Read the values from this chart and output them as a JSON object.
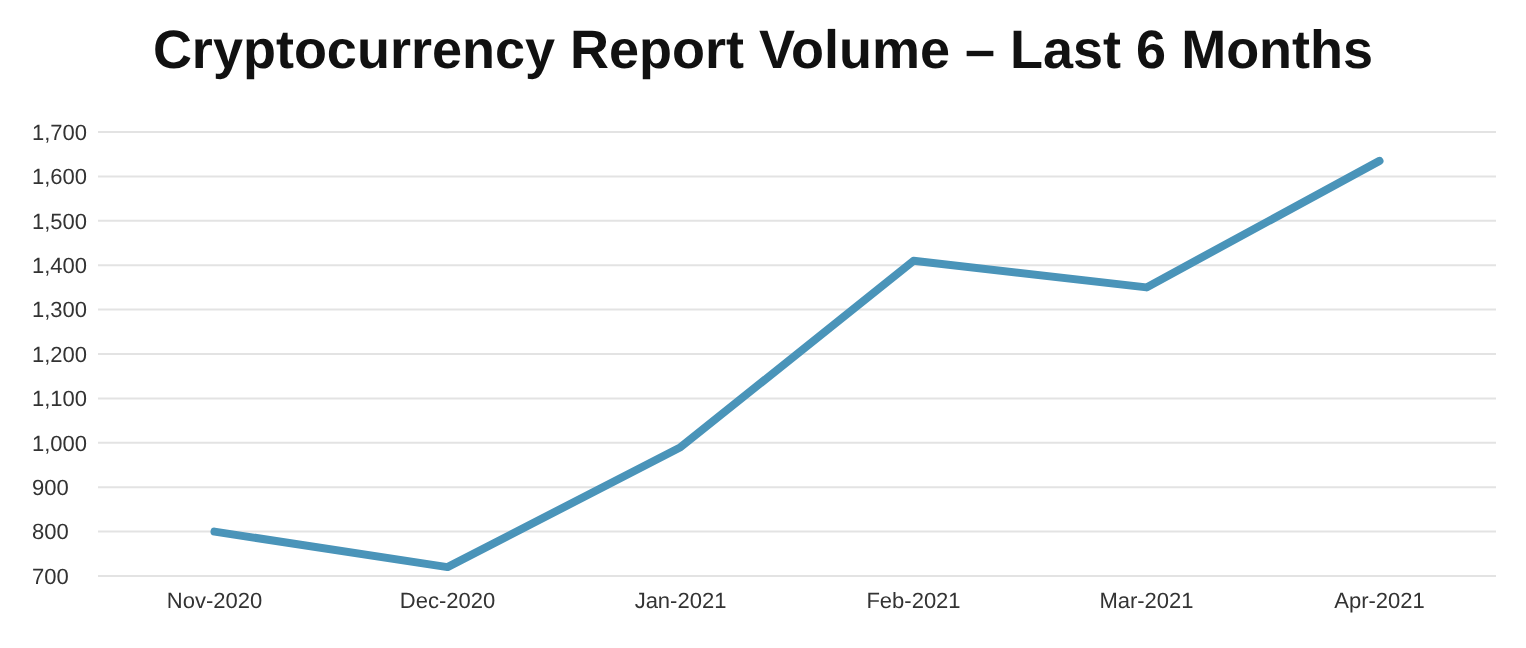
{
  "chart_data": {
    "type": "line",
    "title": "Cryptocurrency Report Volume – Last 6 Months",
    "categories": [
      "Nov-2020",
      "Dec-2020",
      "Jan-2021",
      "Feb-2021",
      "Mar-2021",
      "Apr-2021"
    ],
    "series": [
      {
        "color": "#4a94b9",
        "values": [
          800,
          720,
          990,
          1410,
          1350,
          1635
        ]
      }
    ],
    "ylim": [
      700,
      1700
    ],
    "yticks": [
      {
        "value": 700,
        "label": "700"
      },
      {
        "value": 800,
        "label": "800"
      },
      {
        "value": 900,
        "label": "900"
      },
      {
        "value": 1000,
        "label": "1,000"
      },
      {
        "value": 1100,
        "label": "1,100"
      },
      {
        "value": 1200,
        "label": "1,200"
      },
      {
        "value": 1300,
        "label": "1,300"
      },
      {
        "value": 1400,
        "label": "1,400"
      },
      {
        "value": 1500,
        "label": "1,500"
      },
      {
        "value": 1600,
        "label": "1,600"
      },
      {
        "value": 1700,
        "label": "1,700"
      }
    ],
    "grid": "y",
    "marker": "none",
    "line_style": "solid"
  }
}
